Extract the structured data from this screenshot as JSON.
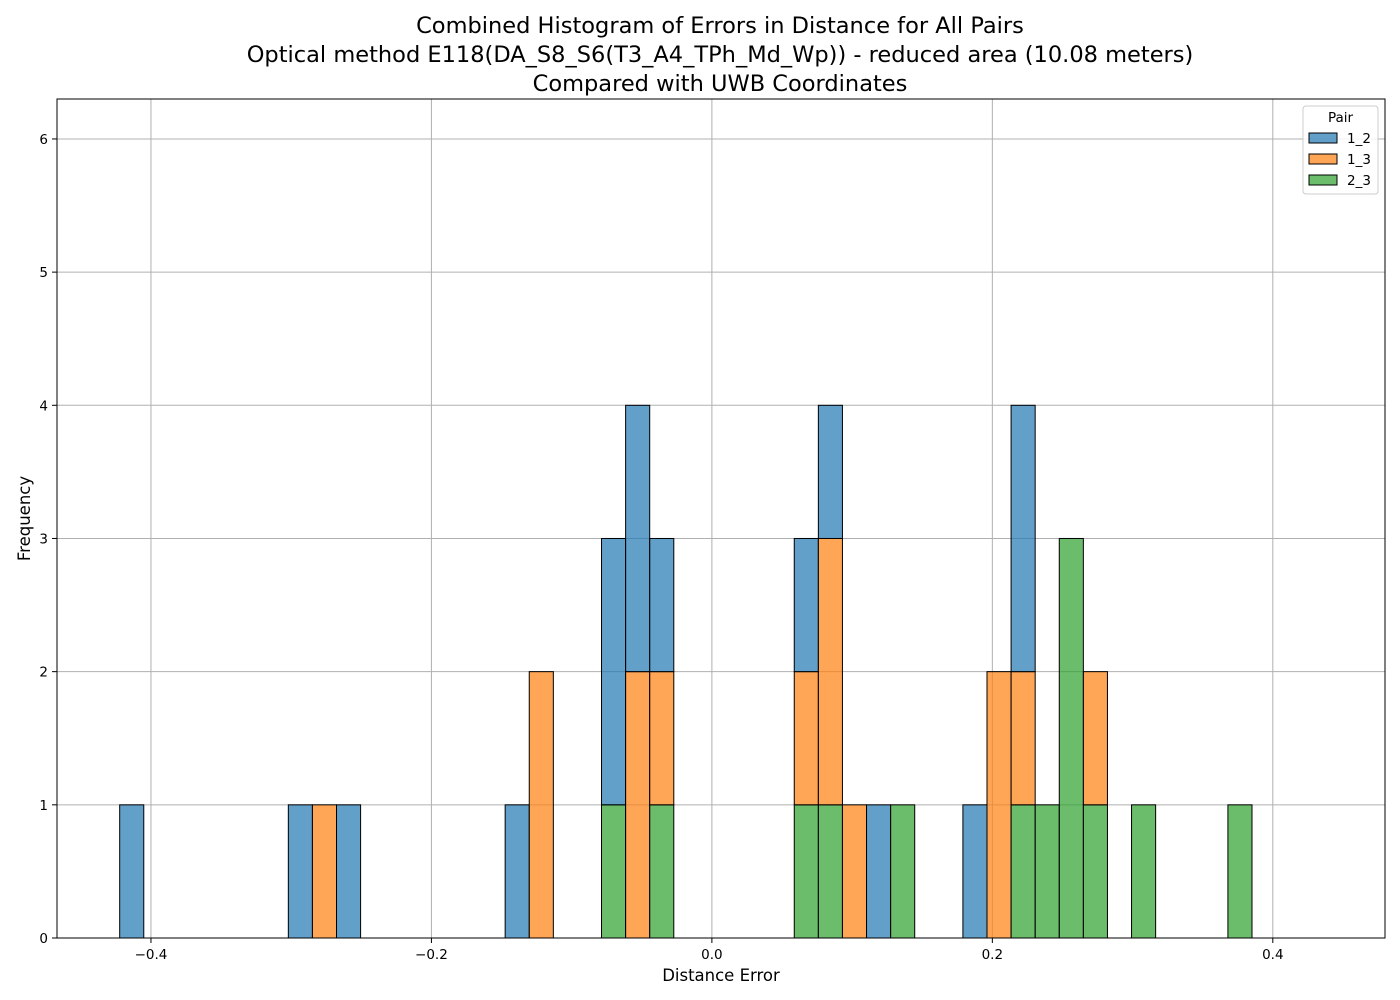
{
  "chart_data": {
    "type": "bar",
    "histogram": true,
    "stacked": true,
    "title_lines": [
      "Combined Histogram of Errors in Distance for All Pairs",
      "Optical method E118(DA_S8_S6(T3_A4_TPh_Md_Wp)) - reduced area (10.08 meters)",
      "Compared with UWB Coordinates"
    ],
    "xlabel": "Distance Error",
    "ylabel": "Frequency",
    "xlim": [
      -0.467,
      0.48
    ],
    "ylim": [
      0,
      6.3
    ],
    "xticks": [
      -0.4,
      -0.2,
      0.0,
      0.2,
      0.4
    ],
    "xtick_labels": [
      "−0.4",
      "−0.2",
      "0.0",
      "0.2",
      "0.4"
    ],
    "yticks": [
      0,
      1,
      2,
      3,
      4,
      5,
      6
    ],
    "ytick_labels": [
      "0",
      "1",
      "2",
      "3",
      "4",
      "5",
      "6"
    ],
    "grid": true,
    "bin_start": -0.4223,
    "bin_width": 0.01718,
    "bin_count": 50,
    "legend": {
      "title": "Pair",
      "position": "top-right"
    },
    "series": [
      {
        "name": "1_2",
        "color": "#1f77b4",
        "counts": [
          1,
          0,
          0,
          0,
          0,
          0,
          0,
          1,
          0,
          1,
          0,
          0,
          0,
          0,
          0,
          0,
          1,
          0,
          0,
          0,
          2,
          2,
          1,
          0,
          0,
          0,
          0,
          0,
          1,
          1,
          0,
          1,
          0,
          0,
          0,
          1,
          0,
          2,
          0,
          0,
          0,
          0,
          0,
          0,
          0,
          0,
          0,
          0,
          0,
          0
        ]
      },
      {
        "name": "1_3",
        "color": "#ff7f0e",
        "counts": [
          0,
          0,
          0,
          0,
          0,
          0,
          0,
          0,
          1,
          0,
          0,
          0,
          0,
          0,
          0,
          0,
          0,
          2,
          0,
          0,
          0,
          2,
          1,
          0,
          0,
          0,
          0,
          0,
          1,
          2,
          1,
          0,
          0,
          0,
          0,
          0,
          2,
          1,
          0,
          0,
          1,
          0,
          0,
          0,
          0,
          0,
          0,
          0,
          0,
          0
        ]
      },
      {
        "name": "2_3",
        "color": "#2ca02c",
        "counts": [
          0,
          0,
          0,
          0,
          0,
          0,
          0,
          0,
          0,
          0,
          0,
          0,
          0,
          0,
          0,
          0,
          0,
          0,
          0,
          0,
          1,
          0,
          1,
          0,
          0,
          0,
          0,
          0,
          1,
          1,
          0,
          0,
          1,
          0,
          0,
          0,
          0,
          1,
          1,
          3,
          1,
          0,
          1,
          0,
          0,
          0,
          1,
          0,
          0,
          0
        ]
      }
    ]
  }
}
